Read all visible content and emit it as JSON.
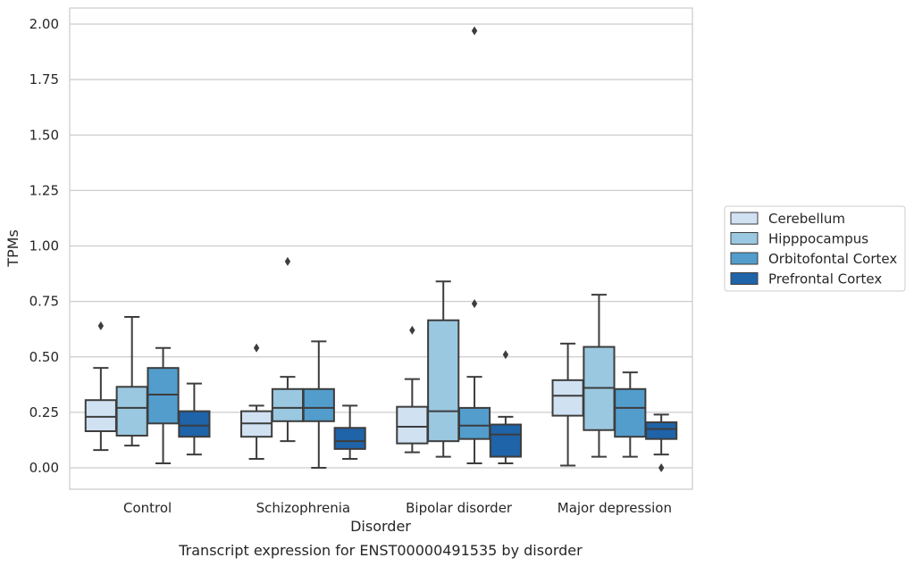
{
  "chart_data": {
    "type": "box",
    "xlabel": "Disorder",
    "ylabel": "TPMs",
    "caption": "Transcript expression for ENST00000491535 by disorder",
    "ylim": [
      -0.1,
      2.07
    ],
    "yticks": [
      "0.00",
      "0.25",
      "0.50",
      "0.75",
      "1.00",
      "1.25",
      "1.50",
      "1.75",
      "2.00"
    ],
    "ytick_values": [
      0.0,
      0.25,
      0.5,
      0.75,
      1.0,
      1.25,
      1.5,
      1.75,
      2.0
    ],
    "grid": "horizontal",
    "legend_position": "right",
    "categories": [
      "Control",
      "Schizophrenia",
      "Bipolar disorder",
      "Major depression"
    ],
    "series": [
      {
        "name": "Cerebellum",
        "color": "#d0e1f2",
        "boxes": [
          {
            "whislo": 0.08,
            "q1": 0.165,
            "med": 0.23,
            "q3": 0.305,
            "whishi": 0.45,
            "fliers": [
              0.64
            ]
          },
          {
            "whislo": 0.04,
            "q1": 0.14,
            "med": 0.2,
            "q3": 0.255,
            "whishi": 0.28,
            "fliers": [
              0.54
            ]
          },
          {
            "whislo": 0.07,
            "q1": 0.11,
            "med": 0.185,
            "q3": 0.275,
            "whishi": 0.4,
            "fliers": [
              0.62
            ]
          },
          {
            "whislo": 0.01,
            "q1": 0.235,
            "med": 0.325,
            "q3": 0.395,
            "whishi": 0.56,
            "fliers": []
          }
        ]
      },
      {
        "name": "Hipppocampus",
        "color": "#9ac8e0",
        "boxes": [
          {
            "whislo": 0.1,
            "q1": 0.145,
            "med": 0.27,
            "q3": 0.365,
            "whishi": 0.68,
            "fliers": []
          },
          {
            "whislo": 0.12,
            "q1": 0.21,
            "med": 0.27,
            "q3": 0.355,
            "whishi": 0.41,
            "fliers": [
              0.93
            ]
          },
          {
            "whislo": 0.05,
            "q1": 0.12,
            "med": 0.255,
            "q3": 0.665,
            "whishi": 0.84,
            "fliers": []
          },
          {
            "whislo": 0.05,
            "q1": 0.17,
            "med": 0.36,
            "q3": 0.545,
            "whishi": 0.78,
            "fliers": []
          }
        ]
      },
      {
        "name": "Orbitofontal Cortex",
        "color": "#529dcc",
        "boxes": [
          {
            "whislo": 0.02,
            "q1": 0.2,
            "med": 0.33,
            "q3": 0.45,
            "whishi": 0.54,
            "fliers": []
          },
          {
            "whislo": 0.0,
            "q1": 0.21,
            "med": 0.27,
            "q3": 0.355,
            "whishi": 0.57,
            "fliers": []
          },
          {
            "whislo": 0.02,
            "q1": 0.13,
            "med": 0.19,
            "q3": 0.27,
            "whishi": 0.41,
            "fliers": [
              0.74,
              1.97
            ]
          },
          {
            "whislo": 0.05,
            "q1": 0.14,
            "med": 0.27,
            "q3": 0.355,
            "whishi": 0.43,
            "fliers": []
          }
        ]
      },
      {
        "name": "Prefrontal Cortex",
        "color": "#1f63a8",
        "boxes": [
          {
            "whislo": 0.06,
            "q1": 0.14,
            "med": 0.19,
            "q3": 0.255,
            "whishi": 0.38,
            "fliers": []
          },
          {
            "whislo": 0.04,
            "q1": 0.085,
            "med": 0.12,
            "q3": 0.18,
            "whishi": 0.28,
            "fliers": []
          },
          {
            "whislo": 0.02,
            "q1": 0.05,
            "med": 0.15,
            "q3": 0.195,
            "whishi": 0.23,
            "fliers": [
              0.51
            ]
          },
          {
            "whislo": 0.06,
            "q1": 0.13,
            "med": 0.175,
            "q3": 0.205,
            "whishi": 0.24,
            "fliers": [
              0.0
            ]
          }
        ]
      }
    ]
  }
}
